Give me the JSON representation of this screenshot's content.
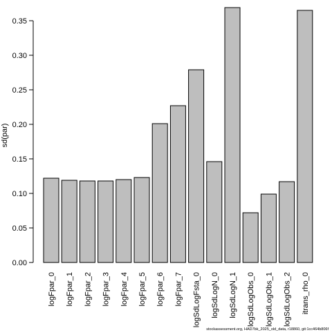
{
  "chart_data": {
    "type": "bar",
    "title": "",
    "xlabel": "",
    "ylabel": "sd(par)",
    "ylim": [
      0,
      0.37
    ],
    "yticks": [
      0.0,
      0.05,
      0.1,
      0.15,
      0.2,
      0.25,
      0.3,
      0.35
    ],
    "ytick_labels": [
      "0.00",
      "0.05",
      "0.10",
      "0.15",
      "0.20",
      "0.25",
      "0.30",
      "0.35"
    ],
    "categories": [
      "logFpar_0",
      "logFpar_1",
      "logFpar_2",
      "logFpar_3",
      "logFpar_4",
      "logFpar_5",
      "logFpar_6",
      "logFpar_7",
      "logSdLogFsta_0",
      "logSdLogN_0",
      "logSdLogN_1",
      "logSdLogObs_0",
      "logSdLogObs_1",
      "logSdLogObs_2",
      "itrans_rho_0"
    ],
    "values": [
      0.122,
      0.119,
      0.118,
      0.118,
      0.12,
      0.123,
      0.201,
      0.227,
      0.279,
      0.146,
      0.369,
      0.072,
      0.099,
      0.117,
      0.365
    ],
    "bar_color": "#bebebe",
    "bar_edge_color": "#000000",
    "grid": false,
    "legend": "none",
    "footer": "stockassessment.org, HAD7bk_2025_old_data, r18860, git:1cc464b806f"
  }
}
